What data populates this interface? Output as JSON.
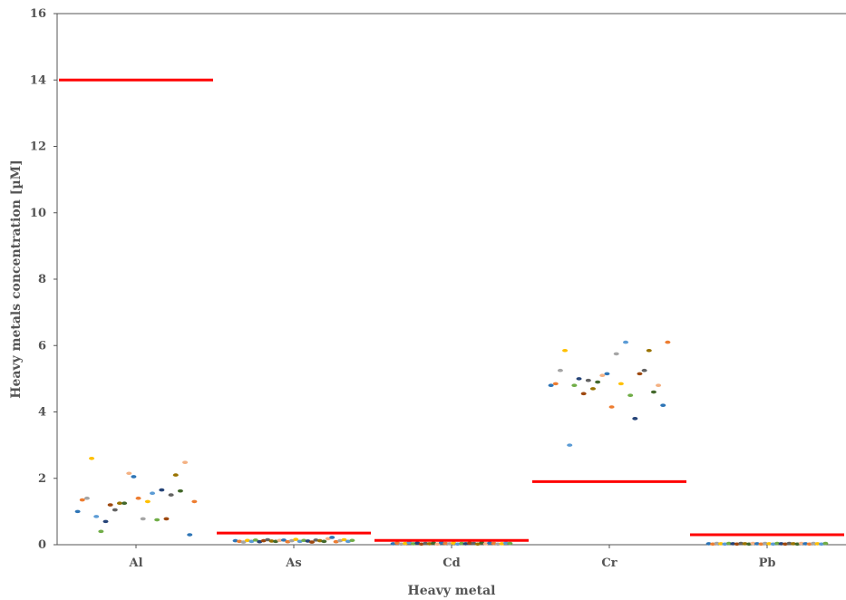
{
  "chart_data": {
    "type": "scatter",
    "xlabel": "Heavy metal",
    "ylabel": "Heavy metals concentration [µM]",
    "ylim": [
      0,
      16
    ],
    "yticks": [
      0,
      2,
      4,
      6,
      8,
      10,
      12,
      14,
      16
    ],
    "categories": [
      "Al",
      "As",
      "Cd",
      "Cr",
      "Pb"
    ],
    "grid": false,
    "threshold_color": "#ff0000",
    "thresholds": [
      {
        "category": "Al",
        "value": 14.0
      },
      {
        "category": "As",
        "value": 0.35
      },
      {
        "category": "Cd",
        "value": 0.13
      },
      {
        "category": "Cr",
        "value": 1.9
      },
      {
        "category": "Pb",
        "value": 0.3
      }
    ],
    "point_colors": [
      "#2e75b6",
      "#ed7d31",
      "#a5a5a5",
      "#ffc000",
      "#5b9bd5",
      "#70ad47",
      "#264478",
      "#9e480e",
      "#636363",
      "#997300",
      "#43682b",
      "#f4b183"
    ],
    "points": {
      "Al": [
        1.0,
        1.35,
        1.4,
        2.6,
        0.85,
        0.4,
        0.7,
        1.2,
        1.05,
        1.25,
        1.25,
        2.15,
        2.05,
        1.4,
        0.78,
        1.3,
        1.55,
        0.75,
        1.65,
        0.78,
        1.5,
        2.1,
        1.62,
        2.48,
        0.3,
        1.3
      ],
      "As": [
        0.12,
        0.1,
        0.08,
        0.13,
        0.1,
        0.14,
        0.09,
        0.12,
        0.15,
        0.11,
        0.1,
        0.13,
        0.14,
        0.09,
        0.12,
        0.16,
        0.1,
        0.13,
        0.11,
        0.08,
        0.14,
        0.12,
        0.1,
        0.18,
        0.22,
        0.09,
        0.12,
        0.15,
        0.1,
        0.13
      ],
      "Cd": [
        0.03,
        0.05,
        0.02,
        0.04,
        0.06,
        0.03,
        0.05,
        0.02,
        0.04,
        0.03,
        0.05,
        0.02,
        0.06,
        0.04,
        0.03,
        0.05,
        0.02,
        0.04,
        0.03,
        0.05,
        0.04,
        0.02,
        0.06,
        0.03,
        0.05,
        0.04,
        0.02,
        0.03,
        0.05,
        0.04
      ],
      "Cr": [
        4.8,
        4.85,
        5.25,
        5.85,
        3.0,
        4.8,
        5.0,
        4.55,
        4.95,
        4.7,
        4.9,
        5.1,
        5.15,
        4.15,
        5.75,
        4.85,
        6.1,
        4.5,
        3.8,
        5.15,
        5.25,
        5.85,
        4.6,
        4.8,
        4.2,
        6.1
      ],
      "Pb": [
        0.03,
        0.02,
        0.04,
        0.03,
        0.02,
        0.04,
        0.03,
        0.02,
        0.04,
        0.03,
        0.02,
        0.04,
        0.03,
        0.02,
        0.04,
        0.03,
        0.02,
        0.04,
        0.03,
        0.02,
        0.04,
        0.03,
        0.02,
        0.04,
        0.03,
        0.02,
        0.04,
        0.03,
        0.02,
        0.04
      ]
    }
  }
}
